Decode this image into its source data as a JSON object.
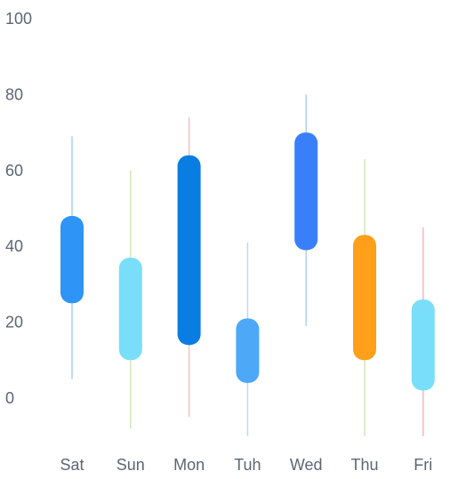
{
  "chart_data": {
    "type": "candlestick",
    "categories": [
      "Sat",
      "Sun",
      "Mon",
      "Tuh",
      "Wed",
      "Thu",
      "Fri"
    ],
    "y_ticks": [
      "0",
      "20",
      "40",
      "60",
      "80",
      "100"
    ],
    "ylim": [
      -10,
      100
    ],
    "grid": false,
    "candles": [
      {
        "category": "Sat",
        "low": 5,
        "high": 69,
        "open": 25,
        "close": 48,
        "body_color": "#2e94f5",
        "wick_color": "#a9d1f7"
      },
      {
        "category": "Sun",
        "low": -8,
        "high": 60,
        "open": 10,
        "close": 37,
        "body_color": "#79def9",
        "wick_color": "#cfe9b9"
      },
      {
        "category": "Mon",
        "low": -5,
        "high": 74,
        "open": 14,
        "close": 64,
        "body_color": "#0a7de2",
        "wick_color": "#f3c0c6"
      },
      {
        "category": "Tuh",
        "low": -10,
        "high": 41,
        "open": 4,
        "close": 21,
        "body_color": "#4da8f7",
        "wick_color": "#b9d9f7"
      },
      {
        "category": "Wed",
        "low": 19,
        "high": 80,
        "open": 39,
        "close": 70,
        "body_color": "#3a7ffa",
        "wick_color": "#b3cff7"
      },
      {
        "category": "Thu",
        "low": -10,
        "high": 63,
        "open": 10,
        "close": 43,
        "body_color": "#ff9f1a",
        "wick_color": "#cfe9b9"
      },
      {
        "category": "Fri",
        "low": -10,
        "high": 45,
        "open": 2,
        "close": 26,
        "body_color": "#79def9",
        "wick_color": "#f3b7bd"
      }
    ]
  }
}
